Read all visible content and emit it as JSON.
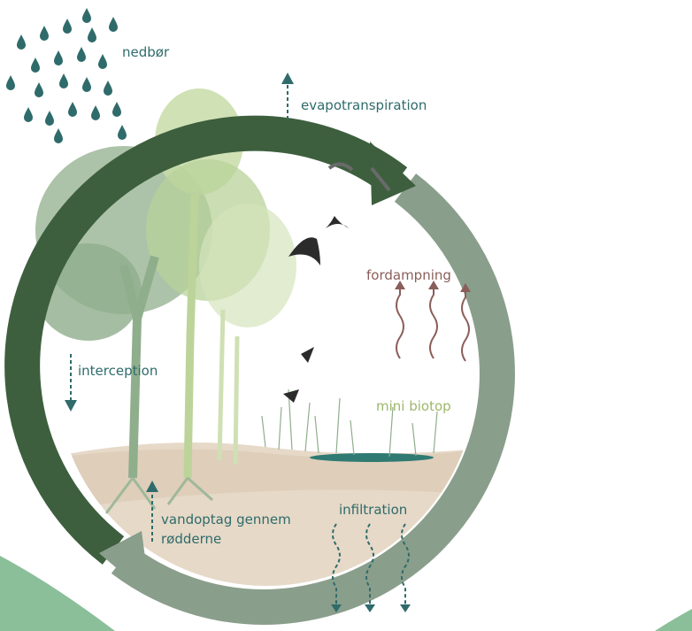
{
  "labels": {
    "precipitation": "nedbør",
    "evapotranspiration": "evapotranspiration",
    "evaporation": "fordampning",
    "interception": "interception",
    "mini_biotope": "mini biotop",
    "root_uptake": [
      "vandoptag gennem",
      "rødderne"
    ],
    "infiltration": "infiltration"
  }
}
